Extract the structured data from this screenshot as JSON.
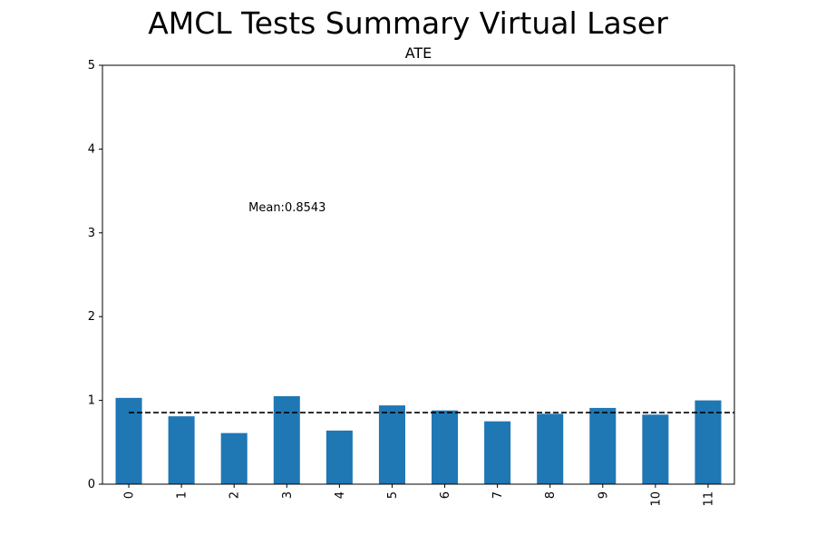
{
  "figure": {
    "suptitle": "AMCL Tests Summary Virtual Laser"
  },
  "chart_data": {
    "type": "bar",
    "title": "ATE",
    "xlabel": "",
    "ylabel": "",
    "categories": [
      "0",
      "1",
      "2",
      "3",
      "4",
      "5",
      "6",
      "7",
      "8",
      "9",
      "10",
      "11"
    ],
    "values": [
      1.03,
      0.81,
      0.61,
      1.05,
      0.64,
      0.94,
      0.88,
      0.75,
      0.84,
      0.91,
      0.83,
      1.0
    ],
    "ylim": [
      0,
      5
    ],
    "yticks": [
      "0",
      "1",
      "2",
      "3",
      "4",
      "5"
    ],
    "bar_color": "#1f77b4",
    "mean_line": {
      "value": 0.8543,
      "style": "dashed",
      "color": "#000000"
    },
    "annotation": "Mean:0.8543",
    "annotation_position": {
      "x": 3,
      "y": 3.3
    },
    "grid": false,
    "legend": "none",
    "xtick_rotation": "vertical"
  }
}
